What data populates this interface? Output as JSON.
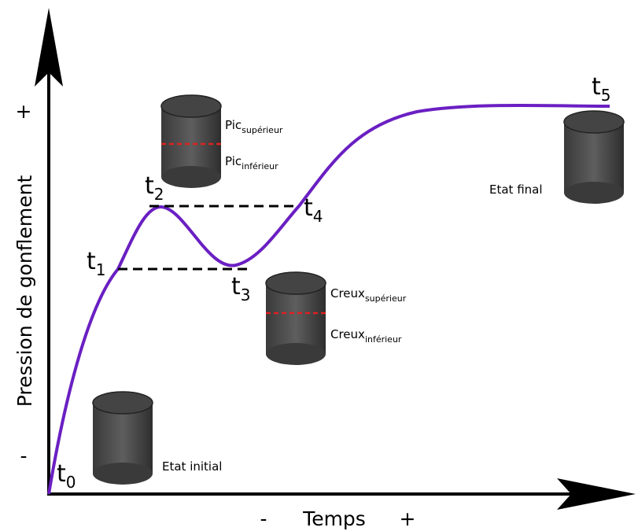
{
  "y_axis": {
    "label": "Pression de gonflement",
    "plus": "+",
    "minus": "-"
  },
  "x_axis": {
    "label": "Temps",
    "minus": "-",
    "plus": "+"
  },
  "time_points": [
    {
      "label": "t",
      "index": "0"
    },
    {
      "label": "t",
      "index": "1"
    },
    {
      "label": "t",
      "index": "2"
    },
    {
      "label": "t",
      "index": "3"
    },
    {
      "label": "t",
      "index": "4"
    },
    {
      "label": "t",
      "index": "5"
    }
  ],
  "cylinders": {
    "peak": {
      "upper": {
        "text": "Pic",
        "sub": "supérieur"
      },
      "lower": {
        "text": "Pic",
        "sub": "inférieur"
      }
    },
    "trough": {
      "upper": {
        "text": "Creux",
        "sub": "supérieur"
      },
      "lower": {
        "text": "Creux",
        "sub": "inférieur"
      }
    },
    "initial": "Etat initial",
    "final": "Etat final"
  }
}
